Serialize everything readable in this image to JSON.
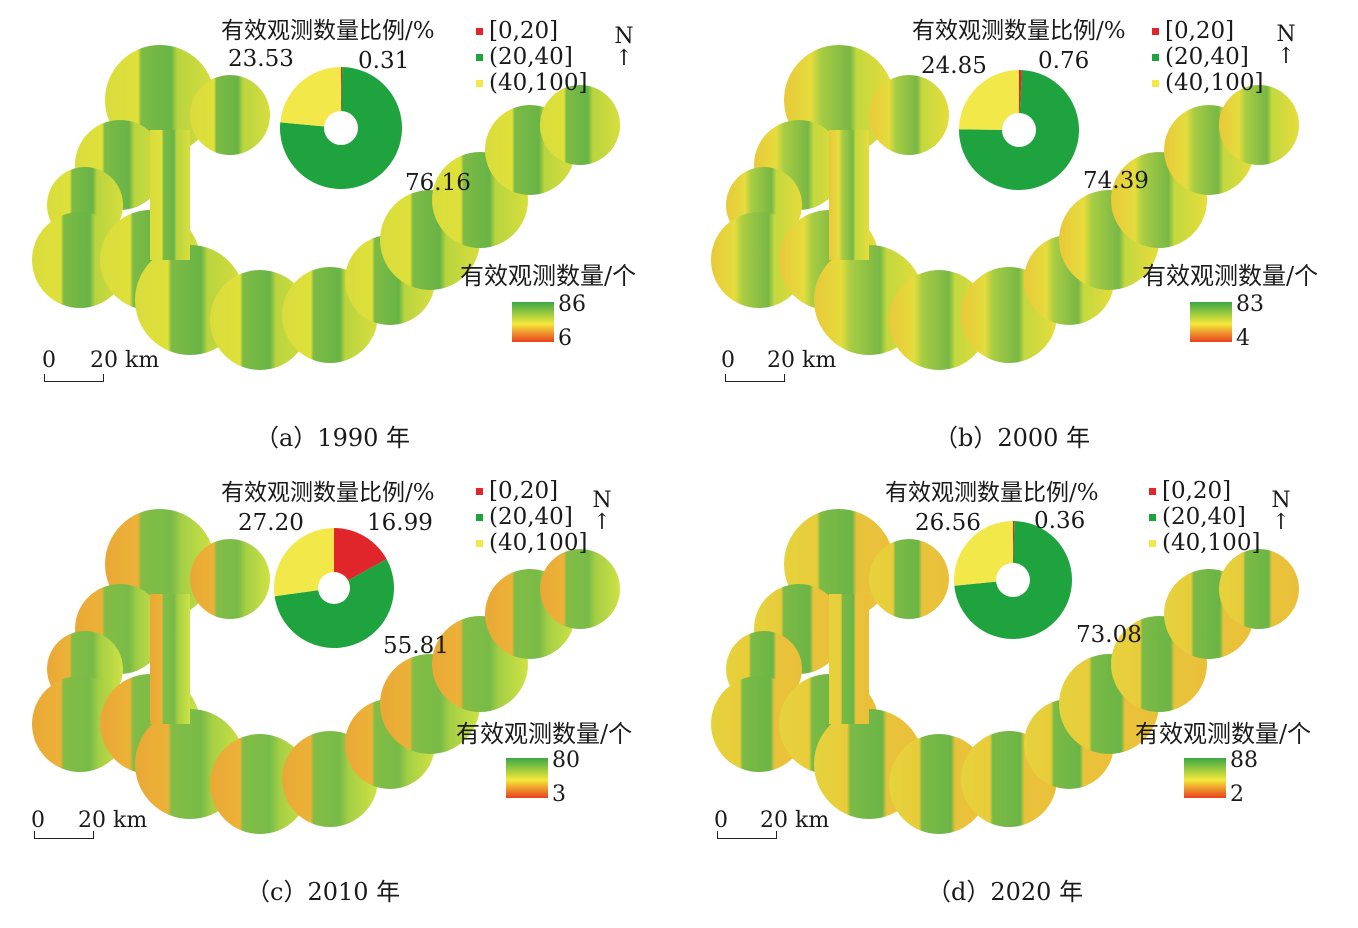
{
  "panels": [
    {
      "caption": "（a）1990 年",
      "pie_title": "有效观测数量比例/%",
      "pie": {
        "slices": [
          {
            "label": "[0,20]",
            "value": 0.31
          },
          {
            "label": "(20,40]",
            "value": 76.16
          },
          {
            "label": "(40,100]",
            "value": 23.53
          }
        ]
      },
      "legend_value_labels": [
        "0.31",
        "76.16",
        "23.53"
      ],
      "legend": [
        "[0,20]",
        "(20,40]",
        "(40,100]"
      ],
      "north": "N",
      "ramp_title": "有效观测数量/个",
      "ramp_max": "86",
      "ramp_min": "6",
      "scale_zero": "0",
      "scale_label": "20 km"
    },
    {
      "caption": "（b）2000 年",
      "pie_title": "有效观测数量比例/%",
      "pie": {
        "slices": [
          {
            "label": "[0,20]",
            "value": 0.76
          },
          {
            "label": "(20,40]",
            "value": 74.39
          },
          {
            "label": "(40,100]",
            "value": 24.85
          }
        ]
      },
      "legend_value_labels": [
        "0.76",
        "74.39",
        "24.85"
      ],
      "legend": [
        "[0,20]",
        "(20,40]",
        "(40,100]"
      ],
      "north": "N",
      "ramp_title": "有效观测数量/个",
      "ramp_max": "83",
      "ramp_min": "4",
      "scale_zero": "0",
      "scale_label": "20 km"
    },
    {
      "caption": "（c）2010 年",
      "pie_title": "有效观测数量比例/%",
      "pie": {
        "slices": [
          {
            "label": "[0,20]",
            "value": 16.99
          },
          {
            "label": "(20,40]",
            "value": 55.81
          },
          {
            "label": "(40,100]",
            "value": 27.2
          }
        ]
      },
      "legend_value_labels": [
        "16.99",
        "55.81",
        "27.20"
      ],
      "legend": [
        "[0,20]",
        "(20,40]",
        "(40,100]"
      ],
      "north": "N",
      "ramp_title": "有效观测数量/个",
      "ramp_max": "80",
      "ramp_min": "3",
      "scale_zero": "0",
      "scale_label": "20 km"
    },
    {
      "caption": "（d）2020 年",
      "pie_title": "有效观测数量比例/%",
      "pie": {
        "slices": [
          {
            "label": "[0,20]",
            "value": 0.36
          },
          {
            "label": "(20,40]",
            "value": 73.08
          },
          {
            "label": "(40,100]",
            "value": 26.56
          }
        ]
      },
      "legend_value_labels": [
        "0.36",
        "73.08",
        "26.56"
      ],
      "legend": [
        "[0,20]",
        "(20,40]",
        "(40,100]"
      ],
      "north": "N",
      "ramp_title": "有效观测数量/个",
      "ramp_max": "88",
      "ramp_min": "2",
      "scale_zero": "0",
      "scale_label": "20 km"
    }
  ],
  "colors": {
    "class_low": "#e0262b",
    "class_mid": "#1fa33f",
    "class_high": "#f2e84a",
    "ramp_high": "#3aa845",
    "ramp_mid": "#f5e93a",
    "ramp_low": "#e8401f"
  }
}
